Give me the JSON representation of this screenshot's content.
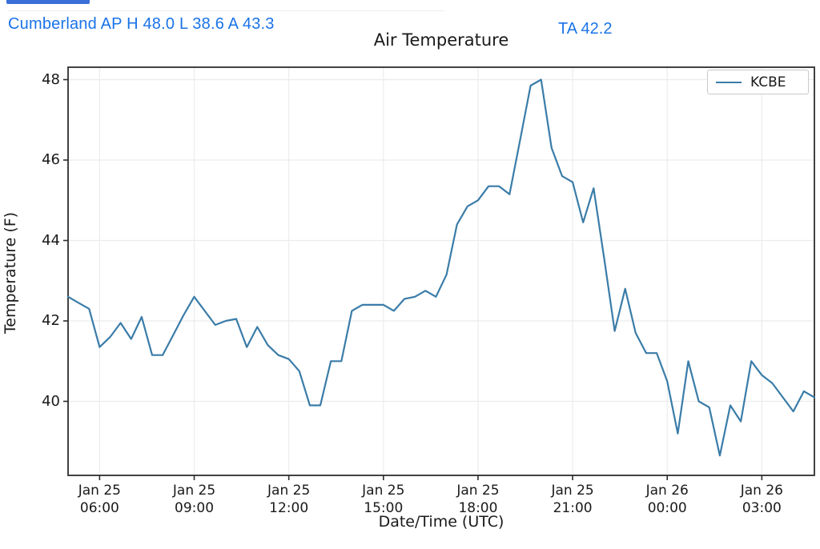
{
  "header": {
    "station_summary": "Cumberland AP H 48.0 L 38.6 A 43.3",
    "ta_readout": "TA 42.2",
    "text_color": "#1a73e8",
    "stats": {
      "station": "Cumberland AP",
      "high": 48.0,
      "low": 38.6,
      "average": 43.3,
      "ta": 42.2
    }
  },
  "chart_data": {
    "type": "line",
    "title": "Air Temperature",
    "xlabel": "Date/Time (UTC)",
    "ylabel": "Temperature (F)",
    "grid": true,
    "legend_position": "upper right",
    "line_color": "#3a7ca8",
    "axis_color": "#2d2d2d",
    "grid_color": "#ececec",
    "ylim": [
      38.15,
      48.3
    ],
    "yticks": [
      40,
      42,
      44,
      46,
      48
    ],
    "xticks": [
      {
        "line1": "Jan 25",
        "line2": "06:00",
        "index": 3
      },
      {
        "line1": "Jan 25",
        "line2": "09:00",
        "index": 12
      },
      {
        "line1": "Jan 25",
        "line2": "12:00",
        "index": 21
      },
      {
        "line1": "Jan 25",
        "line2": "15:00",
        "index": 30
      },
      {
        "line1": "Jan 25",
        "line2": "18:00",
        "index": 39
      },
      {
        "line1": "Jan 25",
        "line2": "21:00",
        "index": 48
      },
      {
        "line1": "Jan 26",
        "line2": "00:00",
        "index": 57
      },
      {
        "line1": "Jan 26",
        "line2": "03:00",
        "index": 66
      }
    ],
    "series": [
      {
        "name": "KCBE",
        "x_labels": [
          "Jan 25 05:00",
          "Jan 25 05:20",
          "Jan 25 05:40",
          "Jan 25 06:00",
          "Jan 25 06:20",
          "Jan 25 06:40",
          "Jan 25 07:00",
          "Jan 25 07:20",
          "Jan 25 07:40",
          "Jan 25 08:00",
          "Jan 25 08:20",
          "Jan 25 08:40",
          "Jan 25 09:00",
          "Jan 25 09:20",
          "Jan 25 09:40",
          "Jan 25 10:00",
          "Jan 25 10:20",
          "Jan 25 10:40",
          "Jan 25 11:00",
          "Jan 25 11:20",
          "Jan 25 11:40",
          "Jan 25 12:00",
          "Jan 25 12:20",
          "Jan 25 12:40",
          "Jan 25 13:00",
          "Jan 25 13:20",
          "Jan 25 13:40",
          "Jan 25 14:00",
          "Jan 25 14:20",
          "Jan 25 14:40",
          "Jan 25 15:00",
          "Jan 25 15:20",
          "Jan 25 15:40",
          "Jan 25 16:00",
          "Jan 25 16:20",
          "Jan 25 16:40",
          "Jan 25 17:00",
          "Jan 25 17:20",
          "Jan 25 17:40",
          "Jan 25 18:00",
          "Jan 25 18:20",
          "Jan 25 18:40",
          "Jan 25 19:00",
          "Jan 25 19:20",
          "Jan 25 19:40",
          "Jan 25 20:00",
          "Jan 25 20:20",
          "Jan 25 20:40",
          "Jan 25 21:00",
          "Jan 25 21:20",
          "Jan 25 21:40",
          "Jan 25 22:00",
          "Jan 25 22:20",
          "Jan 25 22:40",
          "Jan 25 23:00",
          "Jan 25 23:20",
          "Jan 25 23:40",
          "Jan 26 00:00",
          "Jan 26 00:20",
          "Jan 26 00:40",
          "Jan 26 01:00",
          "Jan 26 01:20",
          "Jan 26 01:40",
          "Jan 26 02:00",
          "Jan 26 02:20",
          "Jan 26 02:40",
          "Jan 26 03:00",
          "Jan 26 03:20",
          "Jan 26 03:40",
          "Jan 26 04:00",
          "Jan 26 04:20",
          "Jan 26 04:40"
        ],
        "values": [
          42.6,
          42.45,
          42.3,
          41.35,
          41.6,
          41.95,
          41.55,
          42.1,
          41.15,
          41.15,
          41.65,
          42.15,
          42.6,
          42.25,
          41.9,
          42.0,
          42.05,
          41.35,
          41.85,
          41.4,
          41.15,
          41.05,
          40.75,
          39.9,
          39.9,
          41.0,
          41.0,
          42.25,
          42.4,
          42.4,
          42.4,
          42.25,
          42.55,
          42.6,
          42.75,
          42.6,
          43.15,
          44.4,
          44.85,
          45.0,
          45.35,
          45.35,
          45.15,
          46.5,
          47.85,
          48.0,
          46.3,
          45.6,
          45.45,
          44.45,
          45.3,
          43.55,
          41.75,
          42.8,
          41.7,
          41.2,
          41.2,
          40.5,
          39.2,
          41.0,
          40.0,
          39.85,
          38.65,
          39.9,
          39.5,
          41.0,
          40.65,
          40.45,
          40.1,
          39.75,
          40.25,
          40.1
        ]
      }
    ]
  }
}
